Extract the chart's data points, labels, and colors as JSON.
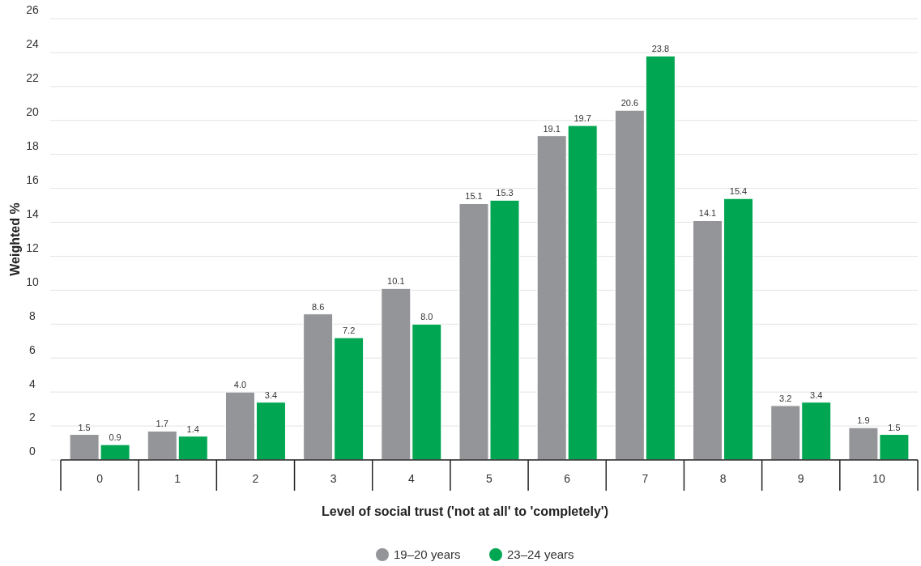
{
  "chart_data": {
    "type": "bar",
    "xlabel": "Level of social trust ('not at all' to 'completely')",
    "ylabel": "Weighted %",
    "categories": [
      "0",
      "1",
      "2",
      "3",
      "4",
      "5",
      "6",
      "7",
      "8",
      "9",
      "10"
    ],
    "series": [
      {
        "name": "19–20 years",
        "color": "#939598",
        "values": [
          1.5,
          1.7,
          4.0,
          8.6,
          10.1,
          15.1,
          19.1,
          20.6,
          14.1,
          3.2,
          1.9
        ]
      },
      {
        "name": "23–24 years",
        "color": "#00a651",
        "values": [
          0.9,
          1.4,
          3.4,
          7.2,
          8.0,
          15.3,
          19.7,
          23.8,
          15.4,
          3.4,
          1.5
        ]
      }
    ],
    "value_labels": [
      [
        "1.5",
        "1.7",
        "4.0",
        "8.6",
        "10.1",
        "15.1",
        "19.1",
        "20.6",
        "14.1",
        "3.2",
        "1.9"
      ],
      [
        "0.9",
        "1.4",
        "3.4",
        "7.2",
        "8.0",
        "15.3",
        "19.7",
        "23.8",
        "15.4",
        "3.4",
        "1.5"
      ]
    ],
    "ylim": [
      0,
      26
    ],
    "yticks": [
      0,
      2,
      4,
      6,
      8,
      10,
      12,
      14,
      16,
      18,
      20,
      22,
      24,
      26
    ],
    "grid": "y",
    "legend": "bottom"
  }
}
